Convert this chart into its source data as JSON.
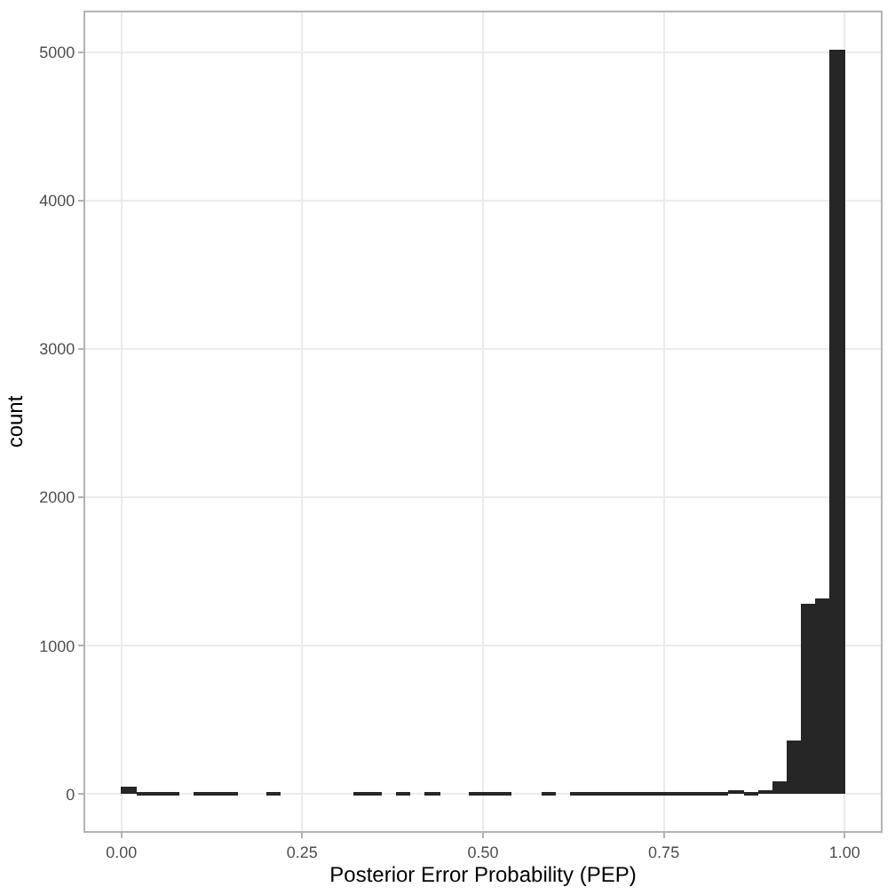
{
  "chart_data": {
    "type": "histogram",
    "xlabel": "Posterior Error Probability (PEP)",
    "ylabel": "count",
    "bins": [
      0,
      0.02,
      0.04,
      0.06,
      0.08,
      0.1,
      0.12,
      0.14,
      0.16,
      0.18,
      0.2,
      0.22,
      0.24,
      0.26,
      0.28,
      0.3,
      0.32,
      0.34,
      0.36,
      0.38,
      0.4,
      0.42,
      0.44,
      0.46,
      0.48,
      0.5,
      0.52,
      0.54,
      0.56,
      0.58,
      0.6,
      0.62,
      0.64,
      0.66,
      0.68,
      0.7,
      0.72,
      0.74,
      0.76,
      0.78,
      0.8,
      0.82,
      0.84,
      0.86,
      0.88,
      0.9,
      0.92,
      0.94,
      0.96,
      0.98,
      1
    ],
    "values": [
      55,
      5,
      5,
      5,
      0,
      5,
      5,
      5,
      0,
      0,
      5,
      0,
      0,
      0,
      0,
      0,
      5,
      5,
      0,
      5,
      0,
      5,
      0,
      0,
      5,
      5,
      5,
      0,
      0,
      5,
      0,
      5,
      5,
      5,
      5,
      5,
      5,
      5,
      5,
      5,
      18,
      18,
      30,
      15,
      30,
      84,
      358,
      1277,
      1313,
      5020
    ],
    "color": "#262626",
    "xlim": [
      -0.05,
      1.05
    ],
    "xticks": [
      {
        "value": 0,
        "label": "0.00"
      },
      {
        "value": 0.25,
        "label": "0.25"
      },
      {
        "value": 0.5,
        "label": "0.50"
      },
      {
        "value": 0.75,
        "label": "0.75"
      },
      {
        "value": 1,
        "label": "1.00"
      }
    ],
    "ylim": [
      -250,
      5270
    ],
    "yticks": [
      0,
      1000,
      2000,
      3000,
      4000,
      5000
    ],
    "grid": true
  }
}
